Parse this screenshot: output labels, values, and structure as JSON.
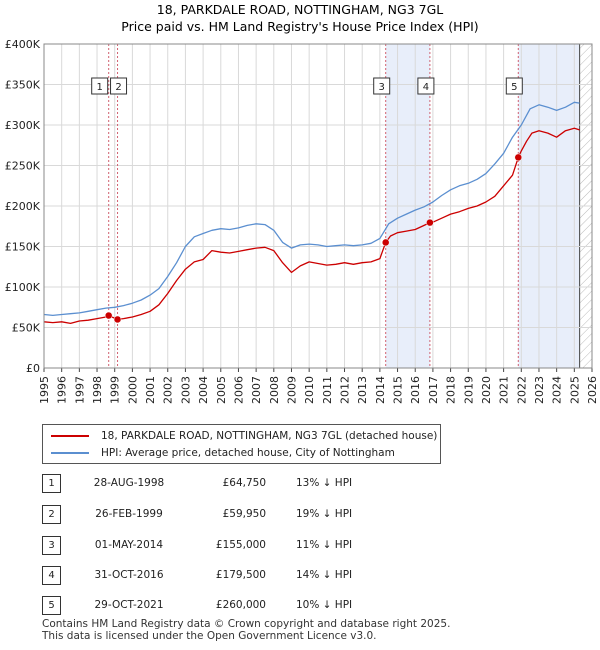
{
  "chart_data": {
    "type": "line",
    "title": "18, PARKDALE ROAD, NOTTINGHAM, NG3 7GL",
    "subtitle": "Price paid vs. HM Land Registry's House Price Index (HPI)",
    "xlim": [
      1995,
      2026
    ],
    "ylim": [
      0,
      400000
    ],
    "x_ticks": [
      "1995",
      "1996",
      "1997",
      "1998",
      "1999",
      "2000",
      "2001",
      "2002",
      "2003",
      "2004",
      "2005",
      "2006",
      "2007",
      "2008",
      "2009",
      "2010",
      "2011",
      "2012",
      "2013",
      "2014",
      "2015",
      "2016",
      "2017",
      "2018",
      "2019",
      "2020",
      "2021",
      "2022",
      "2023",
      "2024",
      "2025",
      "2026"
    ],
    "y_ticks": [
      {
        "value": 0,
        "label": "£0"
      },
      {
        "value": 50000,
        "label": "£50K"
      },
      {
        "value": 100000,
        "label": "£100K"
      },
      {
        "value": 150000,
        "label": "£150K"
      },
      {
        "value": 200000,
        "label": "£200K"
      },
      {
        "value": 250000,
        "label": "£250K"
      },
      {
        "value": 300000,
        "label": "£300K"
      },
      {
        "value": 350000,
        "label": "£350K"
      },
      {
        "value": 400000,
        "label": "£400K"
      }
    ],
    "grid": true,
    "shaded_periods": [
      [
        2014.33,
        2016.83
      ],
      [
        2021.83,
        2025.3
      ]
    ],
    "hatched_after": 2025.3,
    "series": [
      {
        "name": "18, PARKDALE ROAD, NOTTINGHAM, NG3 7GL (detached house)",
        "color": "#cc0000",
        "x": [
          1995.0,
          1995.5,
          1996.0,
          1996.5,
          1997.0,
          1997.5,
          1998.0,
          1998.5,
          1998.66,
          1999.16,
          1999.5,
          2000.0,
          2000.5,
          2001.0,
          2001.5,
          2002.0,
          2002.5,
          2003.0,
          2003.5,
          2004.0,
          2004.5,
          2005.0,
          2005.5,
          2006.0,
          2006.5,
          2007.0,
          2007.5,
          2008.0,
          2008.5,
          2009.0,
          2009.5,
          2010.0,
          2010.5,
          2011.0,
          2011.5,
          2012.0,
          2012.5,
          2013.0,
          2013.5,
          2014.0,
          2014.33,
          2014.6,
          2015.0,
          2015.5,
          2016.0,
          2016.5,
          2016.83,
          2017.0,
          2017.5,
          2018.0,
          2018.5,
          2019.0,
          2019.5,
          2020.0,
          2020.5,
          2021.0,
          2021.5,
          2021.83,
          2022.0,
          2022.3,
          2022.6,
          2023.0,
          2023.5,
          2024.0,
          2024.5,
          2025.0,
          2025.3
        ],
        "y": [
          57000,
          56000,
          57000,
          55000,
          58000,
          59000,
          61000,
          63000,
          64750,
          59950,
          61000,
          63000,
          66000,
          70000,
          78000,
          92000,
          108000,
          122000,
          131000,
          134000,
          145000,
          143000,
          142000,
          144000,
          146000,
          148000,
          149000,
          145000,
          130000,
          118000,
          126000,
          131000,
          129000,
          127000,
          128000,
          130000,
          128000,
          130000,
          131000,
          135000,
          155000,
          163000,
          167000,
          169000,
          171000,
          176000,
          179500,
          180000,
          185000,
          190000,
          193000,
          197000,
          200000,
          205000,
          212000,
          225000,
          238000,
          260000,
          268000,
          280000,
          290000,
          293000,
          290000,
          285000,
          293000,
          296000,
          294000
        ]
      },
      {
        "name": "HPI: Average price, detached house, City of Nottingham",
        "color": "#5b8fd0",
        "x": [
          1995.0,
          1995.5,
          1996.0,
          1996.5,
          1997.0,
          1997.5,
          1998.0,
          1998.5,
          1999.0,
          1999.5,
          2000.0,
          2000.5,
          2001.0,
          2001.5,
          2002.0,
          2002.5,
          2003.0,
          2003.5,
          2004.0,
          2004.5,
          2005.0,
          2005.5,
          2006.0,
          2006.5,
          2007.0,
          2007.5,
          2008.0,
          2008.5,
          2009.0,
          2009.5,
          2010.0,
          2010.5,
          2011.0,
          2011.5,
          2012.0,
          2012.5,
          2013.0,
          2013.5,
          2014.0,
          2014.5,
          2015.0,
          2015.5,
          2016.0,
          2016.5,
          2017.0,
          2017.5,
          2018.0,
          2018.5,
          2019.0,
          2019.5,
          2020.0,
          2020.5,
          2021.0,
          2021.5,
          2022.0,
          2022.5,
          2023.0,
          2023.5,
          2024.0,
          2024.5,
          2025.0,
          2025.3
        ],
        "y": [
          66000,
          65000,
          66000,
          67000,
          68000,
          70000,
          72000,
          74000,
          75000,
          77000,
          80000,
          84000,
          90000,
          98000,
          113000,
          130000,
          150000,
          162000,
          166000,
          170000,
          172000,
          171000,
          173000,
          176000,
          178000,
          177000,
          170000,
          155000,
          148000,
          152000,
          153000,
          152000,
          150000,
          151000,
          152000,
          151000,
          152000,
          154000,
          160000,
          178000,
          185000,
          190000,
          195000,
          199000,
          205000,
          213000,
          220000,
          225000,
          228000,
          233000,
          240000,
          252000,
          265000,
          285000,
          300000,
          320000,
          325000,
          322000,
          318000,
          322000,
          328000,
          327000
        ]
      }
    ],
    "sales": [
      {
        "num": "1",
        "x": 1998.66,
        "y": 64750
      },
      {
        "num": "2",
        "x": 1999.16,
        "y": 59950
      },
      {
        "num": "3",
        "x": 2014.33,
        "y": 155000
      },
      {
        "num": "4",
        "x": 2016.83,
        "y": 179500
      },
      {
        "num": "5",
        "x": 2021.83,
        "y": 260000
      }
    ]
  },
  "legend": {
    "property_label": "18, PARKDALE ROAD, NOTTINGHAM, NG3 7GL (detached house)",
    "hpi_label": "HPI: Average price, detached house, City of Nottingham"
  },
  "transactions": [
    {
      "num": "1",
      "date": "28-AUG-1998",
      "price": "£64,750",
      "hpi": "13% ↓ HPI"
    },
    {
      "num": "2",
      "date": "26-FEB-1999",
      "price": "£59,950",
      "hpi": "19% ↓ HPI"
    },
    {
      "num": "3",
      "date": "01-MAY-2014",
      "price": "£155,000",
      "hpi": "11% ↓ HPI"
    },
    {
      "num": "4",
      "date": "31-OCT-2016",
      "price": "£179,500",
      "hpi": "14% ↓ HPI"
    },
    {
      "num": "5",
      "date": "29-OCT-2021",
      "price": "£260,000",
      "hpi": "10% ↓ HPI"
    }
  ],
  "footer": {
    "line1": "Contains HM Land Registry data © Crown copyright and database right 2025.",
    "line2": "This data is licensed under the Open Government Licence v3.0."
  },
  "colors": {
    "property": "#cc0000",
    "hpi": "#5b8fd0",
    "shade": "#e8eefa",
    "grid": "#d9d9d9",
    "vline": "#d06070"
  }
}
